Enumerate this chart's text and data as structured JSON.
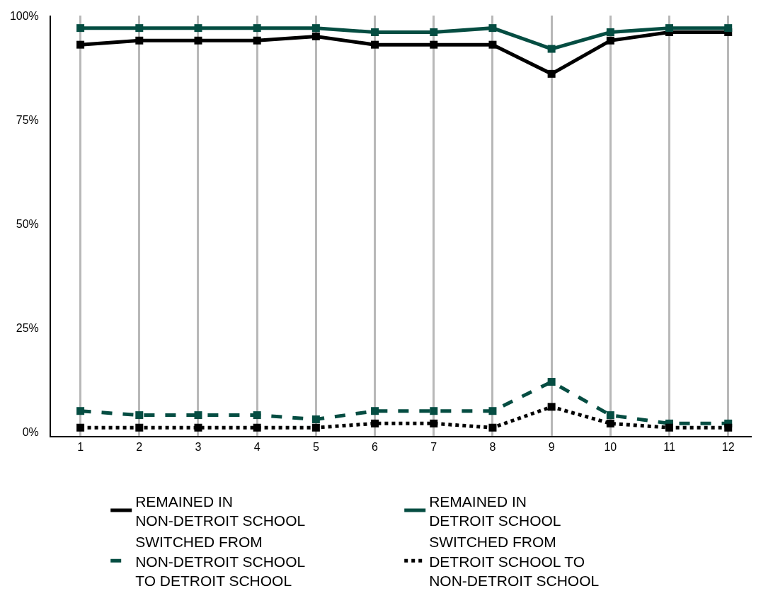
{
  "chart_data": {
    "type": "line",
    "x": [
      1,
      2,
      3,
      4,
      5,
      6,
      7,
      8,
      9,
      10,
      11,
      12
    ],
    "series": [
      {
        "name": "REMAINED IN NON-DETROIT SCHOOL",
        "color": "#000000",
        "line_style": "solid",
        "values": [
          93,
          94,
          94,
          94,
          95,
          93,
          93,
          93,
          86,
          94,
          96,
          96
        ]
      },
      {
        "name": "REMAINED IN DETROIT SCHOOL",
        "color": "#054d42",
        "line_style": "solid",
        "values": [
          97,
          97,
          97,
          97,
          97,
          96,
          96,
          97,
          92,
          96,
          97,
          97
        ]
      },
      {
        "name": "SWITCHED FROM NON-DETROIT SCHOOL TO DETROIT SCHOOL",
        "color": "#054d42",
        "line_style": "dashed",
        "values": [
          5,
          4,
          4,
          4,
          3,
          5,
          5,
          5,
          12,
          4,
          2,
          2
        ]
      },
      {
        "name": "SWITCHED FROM DETROIT SCHOOL TO NON-DETROIT SCHOOL",
        "color": "#000000",
        "line_style": "dotted",
        "values": [
          1,
          1,
          1,
          1,
          1,
          2,
          2,
          1,
          6,
          2,
          1,
          1
        ]
      }
    ],
    "xlim": [
      0.5,
      12.4
    ],
    "xticks": [
      1,
      2,
      3,
      4,
      5,
      6,
      7,
      8,
      9,
      10,
      11,
      12
    ],
    "ylim": [
      -1,
      100
    ],
    "yticks": [
      {
        "value": 0,
        "label": "0%"
      },
      {
        "value": 25,
        "label": "25%"
      },
      {
        "value": 50,
        "label": "50%"
      },
      {
        "value": 75,
        "label": "75%"
      },
      {
        "value": 100,
        "label": "100%"
      }
    ],
    "grid": "x",
    "legend": "bottom",
    "marker": "square"
  }
}
